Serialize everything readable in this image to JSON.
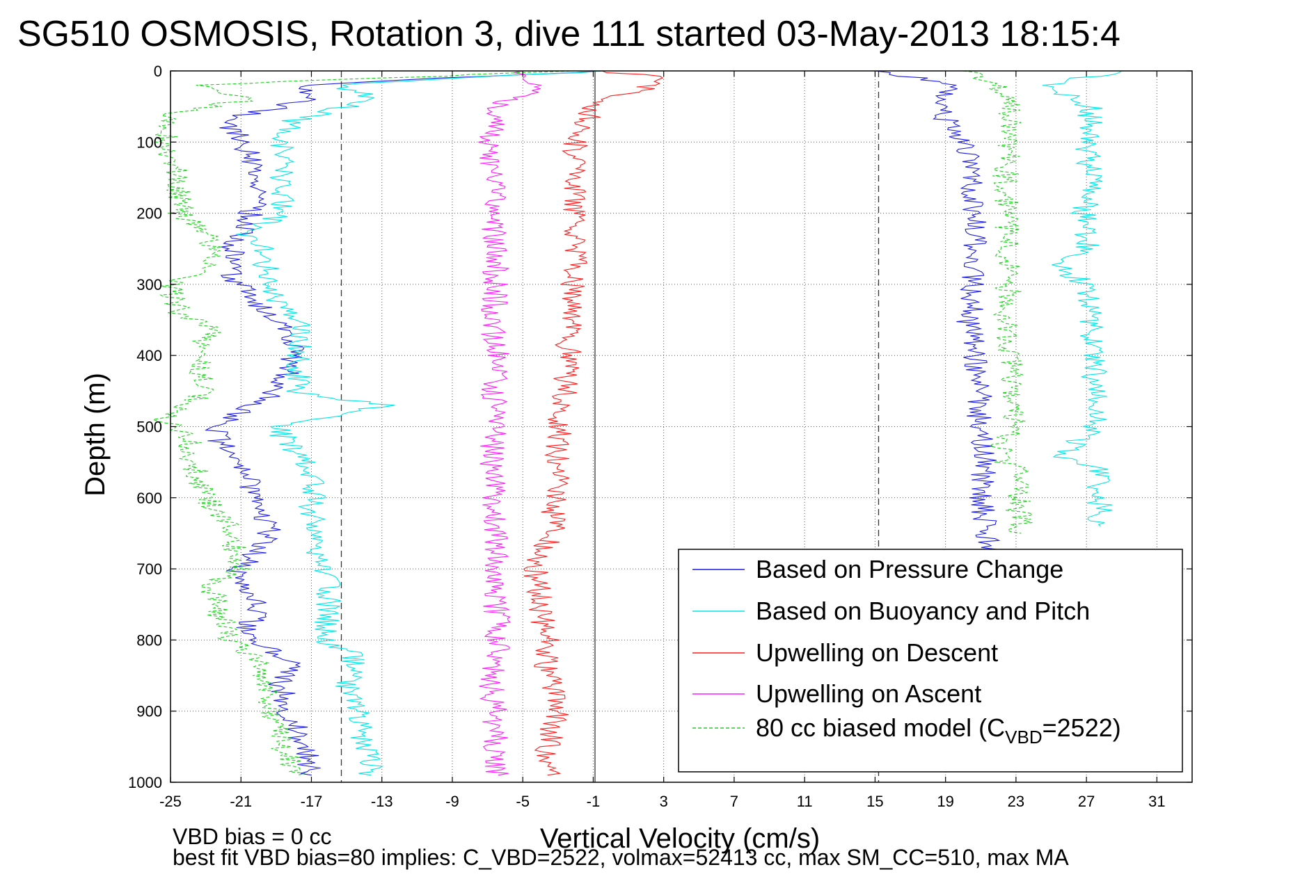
{
  "chart_data": {
    "type": "line",
    "title": "SG510 OSMOSIS, Rotation 3, dive 111 started 03-May-2013 18:15:4",
    "xlabel": "Vertical Velocity (cm/s)",
    "ylabel": "Depth (m)",
    "xlim": [
      -25,
      33
    ],
    "ylim": [
      1000,
      0
    ],
    "y_reversed": true,
    "x_ticks": [
      -25,
      -21,
      -17,
      -13,
      -9,
      -5,
      -1,
      3,
      7,
      11,
      15,
      19,
      23,
      27,
      31
    ],
    "y_ticks": [
      0,
      100,
      200,
      300,
      400,
      500,
      600,
      700,
      800,
      900,
      1000
    ],
    "grid": true,
    "reference_lines": [
      {
        "x": -15.3,
        "style": "dashed"
      },
      {
        "x": -0.9,
        "style": "solid"
      },
      {
        "x": 15.2,
        "style": "dashed"
      }
    ],
    "series": [
      {
        "name": "Based on Pressure Change",
        "color": "#1a1ae6",
        "style": "solid",
        "profiles": [
          {
            "depth": [
              0,
              20,
              40,
              70,
              100,
              150,
              200,
              250,
              290,
              330,
              380,
              420,
              460,
              500,
              540,
              580,
              620,
              660,
              700,
              750,
              800,
              830,
              860,
              900,
              950,
              990
            ],
            "velocity": [
              -0.5,
              -17.5,
              -17.0,
              -22.0,
              -20.8,
              -20.0,
              -20.4,
              -21.5,
              -21.4,
              -20.0,
              -18.0,
              -18.2,
              -19.6,
              -22.6,
              -21.8,
              -20.5,
              -19.6,
              -19.3,
              -21.2,
              -20.0,
              -20.8,
              -17.8,
              -18.8,
              -18.4,
              -17.4,
              -17.0
            ]
          },
          {
            "depth": [
              0,
              20,
              50,
              100,
              150,
              200,
              250,
              300,
              350,
              400,
              450,
              500,
              550,
              600,
              650,
              680
            ],
            "velocity": [
              15.0,
              19.5,
              18.4,
              20.1,
              20.3,
              20.6,
              20.7,
              20.6,
              20.3,
              20.6,
              21.0,
              20.8,
              21.2,
              20.9,
              21.4,
              21.6
            ]
          }
        ]
      },
      {
        "name": "Based on Buoyancy and Pitch",
        "color": "#00e6e6",
        "style": "solid",
        "profiles": [
          {
            "depth": [
              0,
              20,
              40,
              70,
              100,
              150,
              200,
              230,
              250,
              290,
              330,
              360,
              400,
              450,
              470,
              500,
              530,
              560,
              590,
              620,
              660,
              700,
              750,
              800,
              820,
              860,
              900,
              950,
              990
            ],
            "velocity": [
              -0.5,
              -15.5,
              -13.5,
              -18.0,
              -18.8,
              -18.7,
              -18.6,
              -21.0,
              -19.7,
              -19.5,
              -18.8,
              -17.5,
              -17.8,
              -17.7,
              -13.0,
              -19.0,
              -18.2,
              -17.0,
              -16.8,
              -17.0,
              -16.9,
              -16.2,
              -16.0,
              -16.2,
              -14.5,
              -15.0,
              -14.2,
              -14.0,
              -13.6
            ]
          },
          {
            "depth": [
              0,
              20,
              50,
              100,
              150,
              200,
              250,
              270,
              300,
              400,
              500,
              540,
              560,
              600,
              640
            ],
            "velocity": [
              29.0,
              24.5,
              27.3,
              27.0,
              27.2,
              26.9,
              27.0,
              25.0,
              27.0,
              27.4,
              27.5,
              25.5,
              27.6,
              27.7,
              27.8
            ]
          }
        ]
      },
      {
        "name": "Upwelling on Descent",
        "color": "#ff1a1a",
        "style": "solid",
        "profiles": [
          {
            "depth": [
              0,
              10,
              50,
              100,
              150,
              200,
              250,
              300,
              350,
              400,
              450,
              500,
              550,
              600,
              650,
              700,
              750,
              800,
              850,
              900,
              950,
              990
            ],
            "velocity": [
              -0.5,
              3.5,
              -1.0,
              -2.0,
              -2.0,
              -2.1,
              -1.9,
              -2.2,
              -2.4,
              -2.4,
              -2.6,
              -2.9,
              -3.0,
              -3.2,
              -3.3,
              -4.3,
              -4.0,
              -3.6,
              -3.6,
              -3.0,
              -3.6,
              -3.6
            ]
          }
        ]
      },
      {
        "name": "Upwelling on Ascent",
        "color": "#ff1aff",
        "style": "solid",
        "profiles": [
          {
            "depth": [
              0,
              20,
              50,
              100,
              150,
              200,
              250,
              300,
              350,
              400,
              450,
              500,
              550,
              600,
              650,
              700,
              750,
              800,
              850,
              900,
              950,
              990
            ],
            "velocity": [
              -5.0,
              -4.0,
              -6.5,
              -6.8,
              -6.6,
              -6.7,
              -6.6,
              -6.5,
              -6.7,
              -6.5,
              -6.6,
              -6.6,
              -6.8,
              -6.7,
              -6.5,
              -6.6,
              -6.5,
              -6.4,
              -6.8,
              -6.6,
              -6.5,
              -6.4
            ]
          }
        ]
      },
      {
        "name": "80 cc biased model (C",
        "name_subscript": "VBD",
        "name_suffix": "=2522)",
        "color": "#19d219",
        "style": "dashed",
        "profiles": [
          {
            "depth": [
              0,
              20,
              40,
              60,
              100,
              150,
              200,
              230,
              250,
              280,
              300,
              340,
              360,
              400,
              450,
              490,
              520,
              560,
              600,
              650,
              700,
              720,
              760,
              800,
              830,
              870,
              900,
              950,
              990
            ],
            "velocity": [
              -2.0,
              -23.5,
              -20.5,
              -25.0,
              -25.3,
              -24.6,
              -24.4,
              -23.0,
              -22.7,
              -23.2,
              -25.0,
              -24.5,
              -22.8,
              -23.4,
              -23.0,
              -25.3,
              -24.0,
              -23.6,
              -23.0,
              -21.5,
              -21.0,
              -22.7,
              -22.3,
              -21.6,
              -20.0,
              -19.4,
              -19.2,
              -18.6,
              -17.8
            ]
          },
          {
            "depth": [
              0,
              20,
              50,
              100,
              150,
              200,
              250,
              300,
              350,
              400,
              450,
              500,
              540,
              560,
              600,
              650
            ],
            "velocity": [
              20.0,
              22.0,
              22.8,
              22.6,
              22.4,
              22.5,
              22.5,
              22.6,
              22.5,
              22.7,
              22.9,
              22.9,
              22.0,
              23.0,
              23.1,
              23.3
            ]
          }
        ]
      }
    ],
    "legend_location": "bottom-right",
    "footer_lines": [
      "VBD bias = 0 cc",
      "best fit VBD bias=80 implies: C_VBD=2522, volmax=52413 cc, max SM_CC=510, max MA"
    ]
  }
}
